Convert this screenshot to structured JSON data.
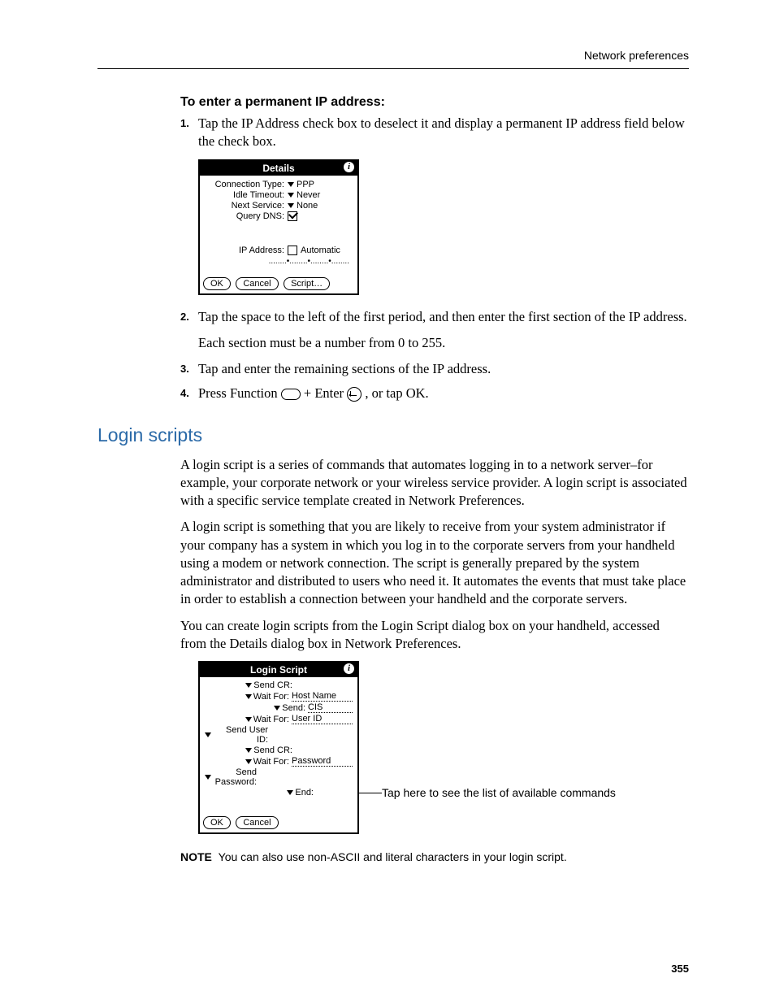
{
  "running_head": "Network preferences",
  "page_number": "355",
  "proc": {
    "title": "To enter a permanent IP address:",
    "steps": [
      "Tap the IP Address check box to deselect it and display a permanent IP address field below the check box.",
      "Tap the space to the left of the first period, and then enter the first section of the IP address.",
      "Tap and enter the remaining sections of the IP address.",
      "Press Function  + Enter  , or tap OK."
    ],
    "step2_note": "Each section must be a number from 0 to 255.",
    "step4_prefix": "Press Function ",
    "step4_mid": " + Enter ",
    "step4_suffix": ", or tap OK."
  },
  "details_dialog": {
    "title": "Details",
    "rows": {
      "connection_type_k": "Connection Type:",
      "connection_type_v": "PPP",
      "idle_timeout_k": "Idle Timeout:",
      "idle_timeout_v": "Never",
      "next_service_k": "Next Service:",
      "next_service_v": "None",
      "query_dns_k": "Query DNS:",
      "ip_address_k": "IP Address:",
      "ip_address_v": "Automatic"
    },
    "buttons": {
      "ok": "OK",
      "cancel": "Cancel",
      "script": "Script…"
    }
  },
  "section_heading": "Login scripts",
  "body": {
    "p1": "A login script is a series of commands that automates logging in to a network server–for example, your corporate network or your wireless service provider. A login script is associated with a specific service template created in Network Preferences.",
    "p2": "A login script is something that you are likely to receive from your system administrator if your company has a system in which you log in to the corporate servers from your handheld using a modem or network connection. The script is generally prepared by the system administrator and distributed to users who need it. It automates the events that must take place in order to establish a connection between your handheld and the corporate servers.",
    "p3": "You can create login scripts from the Login Script dialog box on your handheld, accessed from the Details dialog box in Network Preferences."
  },
  "login_dialog": {
    "title": "Login Script",
    "lines": [
      {
        "label": "Send CR:",
        "indent": 62,
        "val": null
      },
      {
        "label": "Wait For:",
        "indent": 58,
        "val": "Host Name"
      },
      {
        "label": "Send:",
        "indent": 78,
        "val": "CIS"
      },
      {
        "label": "Wait For:",
        "indent": 58,
        "val": "User ID"
      },
      {
        "label": "Send User ID:",
        "indent": 32,
        "val": null
      },
      {
        "label": "Send CR:",
        "indent": 62,
        "val": null
      },
      {
        "label": "Wait For:",
        "indent": 58,
        "val": "Password"
      },
      {
        "label": "Send Password:",
        "indent": 18,
        "val": null
      },
      {
        "label": "End:",
        "indent": 88,
        "val": null
      }
    ],
    "buttons": {
      "ok": "OK",
      "cancel": "Cancel"
    }
  },
  "callout": "Tap here to see the list of available commands",
  "note": {
    "label": "NOTE",
    "text": "You can also use non-ASCII and literal characters in your login script."
  }
}
